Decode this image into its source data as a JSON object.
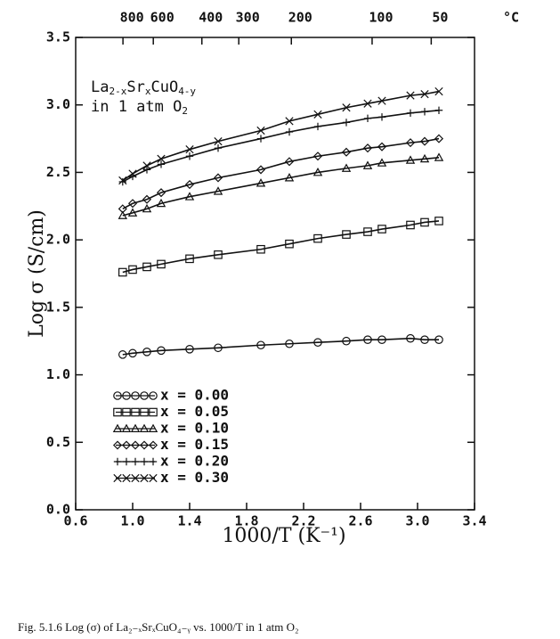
{
  "chart_data": {
    "type": "line",
    "title_lines": [
      [
        "La",
        "2-x",
        "Sr",
        "x",
        "CuO",
        "4-y"
      ],
      [
        "in 1 atm O",
        "2"
      ]
    ],
    "x_label": "1000/T (K⁻¹)",
    "y_label": "Log σ (S/cm)",
    "x2_unit": "°C",
    "caption": "Fig. 5.1.6   Log (σ) of La₂₋ₓSrₓCuO₄₋ᵧ vs. 1000/T in 1 atm O₂",
    "x": [
      0.93,
      1.0,
      1.1,
      1.2,
      1.4,
      1.6,
      1.9,
      2.1,
      2.3,
      2.5,
      2.65,
      2.75,
      2.95,
      3.05,
      3.15
    ],
    "series": [
      {
        "name": "x = 0.00",
        "marker": "circle",
        "color": "#111111",
        "values": [
          1.15,
          1.16,
          1.17,
          1.18,
          1.19,
          1.2,
          1.22,
          1.23,
          1.24,
          1.25,
          1.26,
          1.26,
          1.27,
          1.26,
          1.26
        ]
      },
      {
        "name": "x = 0.05",
        "marker": "square",
        "color": "#111111",
        "values": [
          1.76,
          1.78,
          1.8,
          1.82,
          1.86,
          1.89,
          1.93,
          1.97,
          2.01,
          2.04,
          2.06,
          2.08,
          2.11,
          2.13,
          2.14
        ]
      },
      {
        "name": "x = 0.10",
        "marker": "triangle",
        "color": "#111111",
        "values": [
          2.18,
          2.2,
          2.23,
          2.27,
          2.32,
          2.36,
          2.42,
          2.46,
          2.5,
          2.53,
          2.55,
          2.57,
          2.59,
          2.6,
          2.61
        ]
      },
      {
        "name": "x = 0.15",
        "marker": "diamond",
        "color": "#111111",
        "values": [
          2.23,
          2.27,
          2.3,
          2.35,
          2.41,
          2.46,
          2.52,
          2.58,
          2.62,
          2.65,
          2.68,
          2.69,
          2.72,
          2.73,
          2.75
        ]
      },
      {
        "name": "x = 0.20",
        "marker": "plus",
        "color": "#111111",
        "values": [
          2.43,
          2.47,
          2.52,
          2.56,
          2.62,
          2.68,
          2.75,
          2.8,
          2.84,
          2.87,
          2.9,
          2.91,
          2.94,
          2.95,
          2.96
        ]
      },
      {
        "name": "x = 0.30",
        "marker": "cross",
        "color": "#111111",
        "values": [
          2.44,
          2.49,
          2.55,
          2.6,
          2.67,
          2.73,
          2.81,
          2.88,
          2.93,
          2.98,
          3.01,
          3.03,
          3.07,
          3.08,
          3.1
        ]
      }
    ],
    "xlim": [
      0.6,
      3.4
    ],
    "xticks": [
      0.6,
      {
        "value": 1.0,
        "label": "1.0"
      },
      1.4,
      1.8,
      2.2,
      2.6,
      {
        "value": 3.0,
        "label": "3.0"
      },
      3.4
    ],
    "ylim": [
      0,
      3.5
    ],
    "yticks": [
      {
        "value": 0,
        "label": "0.0"
      },
      0.5,
      {
        "value": 1.0,
        "label": "1.0"
      },
      1.5,
      {
        "value": 2.0,
        "label": "2.0"
      },
      2.5,
      {
        "value": 3.0,
        "label": "3.0"
      },
      3.5
    ],
    "x2ticks": [
      {
        "value": 0.932,
        "label": "800"
      },
      {
        "value": 1.145,
        "label": "600"
      },
      {
        "value": 1.486,
        "label": "400"
      },
      {
        "value": 1.745,
        "label": "300"
      },
      {
        "value": 2.114,
        "label": "200"
      },
      {
        "value": 2.681,
        "label": "100"
      },
      {
        "value": 3.096,
        "label": "50"
      }
    ],
    "legend": "lower left",
    "grid": false
  }
}
